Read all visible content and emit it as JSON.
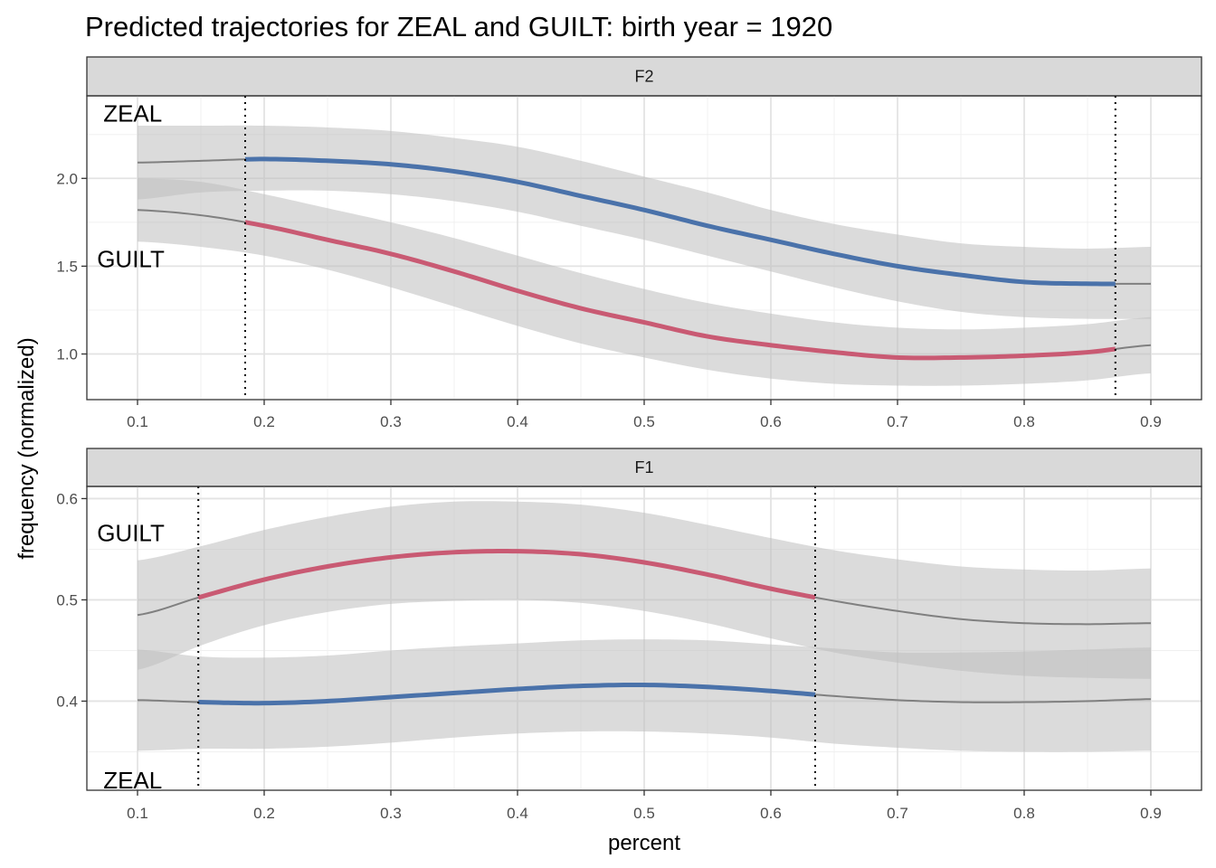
{
  "chart_data": {
    "type": "line",
    "title": "Predicted trajectories for ZEAL and GUILT: birth year = 1920",
    "xlabel": "percent",
    "ylabel": "frequency (normalized)",
    "grid": true,
    "colors": {
      "ZEAL": "#4a72aa",
      "GUILT": "#c95a73",
      "outside": "#808080",
      "ribbon": "#bebebe",
      "strip_bg": "#d9d9d9"
    },
    "panels": [
      {
        "strip": "F2",
        "xlim": [
          0.06,
          0.94
        ],
        "ylim": [
          0.74,
          2.47
        ],
        "x_ticks": [
          0.1,
          0.2,
          0.3,
          0.4,
          0.5,
          0.6,
          0.7,
          0.8,
          0.9
        ],
        "x_tick_labels": [
          "0.1",
          "0.2",
          "0.3",
          "0.4",
          "0.5",
          "0.6",
          "0.7",
          "0.8",
          "0.9"
        ],
        "y_ticks": [
          1.0,
          1.5,
          2.0
        ],
        "y_tick_labels": [
          "1.0",
          "1.5",
          "2.0"
        ],
        "vlines": [
          0.185,
          0.872
        ],
        "highlight_range": [
          0.185,
          0.872
        ],
        "annotations": [
          {
            "text": "ZEAL",
            "x": 0.073,
            "y": 2.37
          },
          {
            "text": "GUILT",
            "x": 0.068,
            "y": 1.54
          }
        ],
        "series": [
          {
            "name": "ZEAL",
            "x": [
              0.1,
              0.15,
              0.2,
              0.25,
              0.3,
              0.35,
              0.4,
              0.45,
              0.5,
              0.55,
              0.6,
              0.65,
              0.7,
              0.75,
              0.8,
              0.85,
              0.9
            ],
            "y": [
              2.09,
              2.1,
              2.11,
              2.1,
              2.08,
              2.04,
              1.98,
              1.9,
              1.82,
              1.73,
              1.65,
              1.57,
              1.5,
              1.45,
              1.41,
              1.4,
              1.4
            ],
            "lower": [
              1.88,
              1.92,
              1.93,
              1.93,
              1.91,
              1.87,
              1.81,
              1.73,
              1.65,
              1.56,
              1.47,
              1.38,
              1.3,
              1.24,
              1.21,
              1.2,
              1.2
            ],
            "upper": [
              2.3,
              2.3,
              2.3,
              2.29,
              2.27,
              2.23,
              2.18,
              2.1,
              2.01,
              1.92,
              1.82,
              1.74,
              1.68,
              1.63,
              1.61,
              1.6,
              1.61
            ]
          },
          {
            "name": "GUILT",
            "x": [
              0.1,
              0.15,
              0.2,
              0.25,
              0.3,
              0.35,
              0.4,
              0.45,
              0.5,
              0.55,
              0.6,
              0.65,
              0.7,
              0.75,
              0.8,
              0.85,
              0.9
            ],
            "y": [
              1.82,
              1.79,
              1.73,
              1.65,
              1.57,
              1.47,
              1.36,
              1.26,
              1.18,
              1.1,
              1.05,
              1.01,
              0.98,
              0.98,
              0.99,
              1.01,
              1.05
            ],
            "lower": [
              1.64,
              1.61,
              1.56,
              1.48,
              1.38,
              1.27,
              1.16,
              1.06,
              0.98,
              0.91,
              0.86,
              0.83,
              0.82,
              0.82,
              0.83,
              0.85,
              0.89
            ],
            "upper": [
              2.0,
              1.98,
              1.91,
              1.83,
              1.75,
              1.66,
              1.56,
              1.46,
              1.37,
              1.29,
              1.23,
              1.18,
              1.15,
              1.14,
              1.15,
              1.17,
              1.21
            ]
          }
        ]
      },
      {
        "strip": "F1",
        "xlim": [
          0.06,
          0.94
        ],
        "ylim": [
          0.312,
          0.612
        ],
        "x_ticks": [
          0.1,
          0.2,
          0.3,
          0.4,
          0.5,
          0.6,
          0.7,
          0.8,
          0.9
        ],
        "x_tick_labels": [
          "0.1",
          "0.2",
          "0.3",
          "0.4",
          "0.5",
          "0.6",
          "0.7",
          "0.8",
          "0.9"
        ],
        "y_ticks": [
          0.4,
          0.5,
          0.6
        ],
        "y_tick_labels": [
          "0.4",
          "0.5",
          "0.6"
        ],
        "vlines": [
          0.148,
          0.635
        ],
        "highlight_range": [
          0.148,
          0.635
        ],
        "annotations": [
          {
            "text": "GUILT",
            "x": 0.068,
            "y": 0.566
          },
          {
            "text": "ZEAL",
            "x": 0.073,
            "y": 0.322
          }
        ],
        "series": [
          {
            "name": "GUILT",
            "x": [
              0.1,
              0.15,
              0.2,
              0.25,
              0.3,
              0.35,
              0.4,
              0.45,
              0.5,
              0.55,
              0.6,
              0.65,
              0.7,
              0.75,
              0.8,
              0.85,
              0.9
            ],
            "y": [
              0.485,
              0.503,
              0.52,
              0.533,
              0.542,
              0.547,
              0.548,
              0.545,
              0.537,
              0.525,
              0.511,
              0.499,
              0.489,
              0.481,
              0.477,
              0.476,
              0.477
            ],
            "lower": [
              0.431,
              0.455,
              0.475,
              0.488,
              0.496,
              0.499,
              0.5,
              0.497,
              0.489,
              0.477,
              0.462,
              0.448,
              0.438,
              0.43,
              0.425,
              0.423,
              0.422
            ],
            "upper": [
              0.539,
              0.553,
              0.569,
              0.582,
              0.592,
              0.597,
              0.597,
              0.594,
              0.586,
              0.574,
              0.561,
              0.549,
              0.54,
              0.533,
              0.53,
              0.529,
              0.531
            ]
          },
          {
            "name": "ZEAL",
            "x": [
              0.1,
              0.15,
              0.2,
              0.25,
              0.3,
              0.35,
              0.4,
              0.45,
              0.5,
              0.55,
              0.6,
              0.65,
              0.7,
              0.75,
              0.8,
              0.85,
              0.9
            ],
            "y": [
              0.401,
              0.399,
              0.398,
              0.4,
              0.404,
              0.408,
              0.412,
              0.415,
              0.416,
              0.414,
              0.41,
              0.405,
              0.401,
              0.399,
              0.399,
              0.4,
              0.402
            ],
            "lower": [
              0.351,
              0.353,
              0.353,
              0.355,
              0.359,
              0.364,
              0.368,
              0.37,
              0.37,
              0.368,
              0.364,
              0.358,
              0.354,
              0.351,
              0.35,
              0.35,
              0.351
            ],
            "upper": [
              0.451,
              0.444,
              0.443,
              0.445,
              0.45,
              0.454,
              0.457,
              0.46,
              0.461,
              0.46,
              0.456,
              0.452,
              0.448,
              0.448,
              0.449,
              0.451,
              0.453
            ]
          }
        ]
      }
    ]
  }
}
